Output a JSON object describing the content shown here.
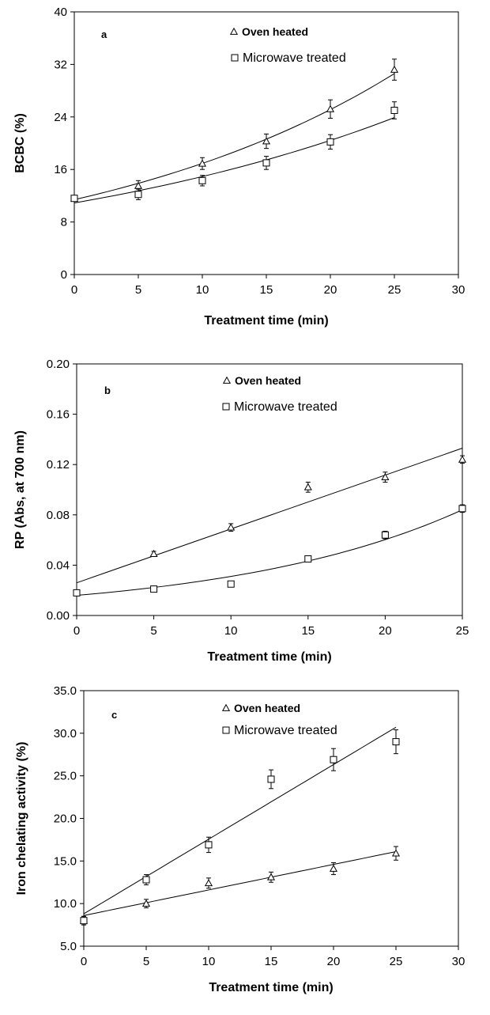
{
  "chart_data": [
    {
      "type": "scatter",
      "panel_label": "a",
      "xlabel": "Treatment time (min)",
      "ylabel": "BCBC (%)",
      "xlim": [
        0,
        30
      ],
      "ylim": [
        0,
        40
      ],
      "x_ticks": [
        "0",
        "5",
        "10",
        "15",
        "20",
        "25",
        "30"
      ],
      "y_ticks": [
        "0",
        "8",
        "16",
        "24",
        "32",
        "40"
      ],
      "grid": false,
      "legend_position": "top-center",
      "series": [
        {
          "name": "Oven heated",
          "marker": "triangle",
          "x": [
            0,
            5,
            10,
            15,
            20,
            25
          ],
          "y": [
            11.6,
            13.5,
            16.9,
            20.3,
            25.2,
            31.2
          ],
          "error": [
            0.4,
            0.8,
            0.9,
            1.1,
            1.4,
            1.6
          ],
          "trend": "exponential",
          "trend_x": [
            0,
            25
          ],
          "trend_y": [
            11.4,
            30.6
          ]
        },
        {
          "name": "Microwave treated",
          "marker": "square",
          "x": [
            0,
            5,
            10,
            15,
            20,
            25
          ],
          "y": [
            11.6,
            12.2,
            14.3,
            17.0,
            20.2,
            25.0
          ],
          "error": [
            0.4,
            0.8,
            0.8,
            1.0,
            1.1,
            1.3
          ],
          "trend": "exponential",
          "trend_x": [
            0,
            25
          ],
          "trend_y": [
            10.9,
            23.9
          ]
        }
      ]
    },
    {
      "type": "scatter",
      "panel_label": "b",
      "xlabel": "Treatment time (min)",
      "ylabel": "RP (Abs, at 700 nm)",
      "xlim": [
        0,
        25
      ],
      "ylim": [
        0,
        0.2
      ],
      "x_ticks": [
        "0",
        "5",
        "10",
        "15",
        "20",
        "25"
      ],
      "y_ticks": [
        "0.00",
        "0.04",
        "0.08",
        "0.12",
        "0.16",
        "0.20"
      ],
      "grid": false,
      "legend_position": "top-center",
      "series": [
        {
          "name": "Oven heated",
          "marker": "triangle",
          "x": [
            5,
            10,
            15,
            20,
            25
          ],
          "y": [
            0.049,
            0.07,
            0.102,
            0.11,
            0.124
          ],
          "error": [
            0.002,
            0.003,
            0.004,
            0.004,
            0.003
          ],
          "trend": "linear",
          "trend_x": [
            0,
            25
          ],
          "trend_y": [
            0.026,
            0.133
          ]
        },
        {
          "name": "Microwave treated",
          "marker": "square",
          "x": [
            0,
            5,
            10,
            15,
            20,
            25
          ],
          "y": [
            0.018,
            0.021,
            0.025,
            0.045,
            0.064,
            0.085
          ],
          "error": [
            0.002,
            0.002,
            0.002,
            0.002,
            0.003,
            0.003
          ],
          "trend": "exponential",
          "trend_x": [
            0,
            25
          ],
          "trend_y": [
            0.016,
            0.084
          ]
        }
      ]
    },
    {
      "type": "scatter",
      "panel_label": "c",
      "xlabel": "Treatment time (min)",
      "ylabel": "Iron chelating activity (%)",
      "xlim": [
        0,
        30
      ],
      "ylim": [
        5,
        35
      ],
      "x_ticks": [
        "0",
        "5",
        "10",
        "15",
        "20",
        "25",
        "30"
      ],
      "y_ticks": [
        "5.0",
        "10.0",
        "15.0",
        "20.0",
        "25.0",
        "30.0",
        "35.0"
      ],
      "grid": false,
      "legend_position": "top-center",
      "series": [
        {
          "name": "Oven heated",
          "marker": "triangle",
          "x": [
            0,
            5,
            10,
            15,
            20,
            25
          ],
          "y": [
            8.0,
            10.0,
            12.4,
            13.1,
            14.1,
            15.9
          ],
          "error": [
            0.5,
            0.5,
            0.6,
            0.6,
            0.7,
            0.8
          ],
          "trend": "linear",
          "trend_x": [
            0,
            25
          ],
          "trend_y": [
            8.6,
            16.1
          ]
        },
        {
          "name": "Microwave treated",
          "marker": "square",
          "x": [
            0,
            5,
            10,
            15,
            20,
            25
          ],
          "y": [
            8.0,
            12.8,
            16.9,
            24.6,
            26.9,
            29.0
          ],
          "error": [
            0.5,
            0.6,
            0.9,
            1.1,
            1.3,
            1.4
          ],
          "trend": "linear",
          "trend_x": [
            0,
            25
          ],
          "trend_y": [
            8.8,
            30.7
          ]
        }
      ]
    }
  ]
}
